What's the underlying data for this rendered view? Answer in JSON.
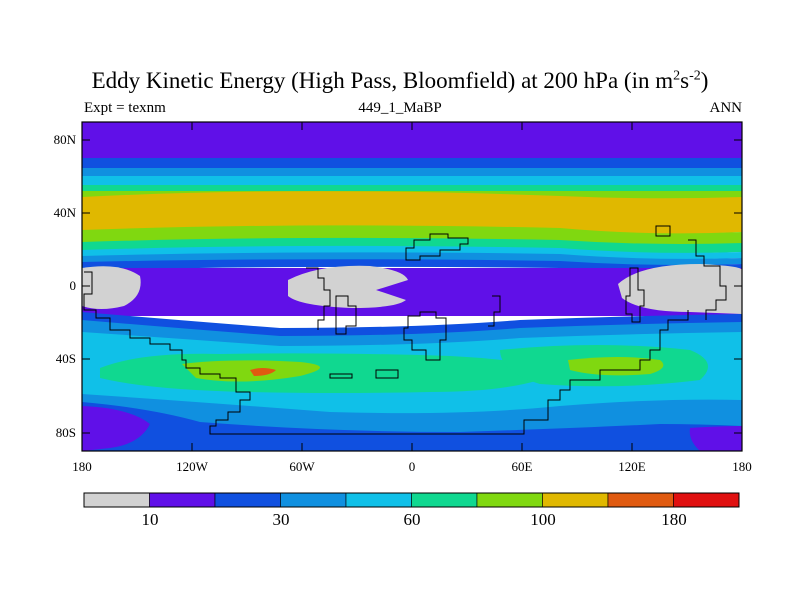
{
  "title": {
    "main": "Eddy Kinetic Energy (High Pass, Bloomfield) at 200 hPa (in m",
    "sup1": "2",
    "mid": "s",
    "sup2": "-2",
    "end": ")"
  },
  "subtitle": {
    "left": "Expt = texnm",
    "center": "449_1_MaBP",
    "right": "ANN"
  },
  "map": {
    "lat_labels": [
      "80N",
      "40N",
      "0",
      "40S",
      "80S"
    ],
    "lon_labels": [
      "180",
      "120W",
      "60W",
      "0",
      "60E",
      "120E",
      "180"
    ]
  },
  "colorbar": {
    "colors": [
      "#d2d2d2",
      "#6010e8",
      "#1050e0",
      "#1090e0",
      "#10c0e8",
      "#10d890",
      "#80d810",
      "#e0b800",
      "#e05a10",
      "#e01010"
    ],
    "labels": [
      "10",
      "30",
      "60",
      "100",
      "180"
    ]
  }
}
